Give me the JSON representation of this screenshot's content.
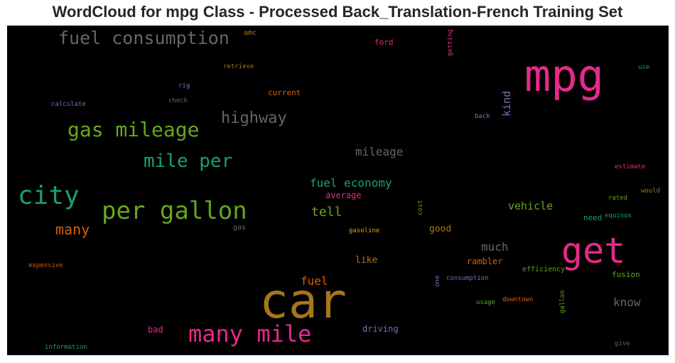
{
  "title": "WordCloud for mpg Class - Processed Back_Translation-French Training Set",
  "words": [
    {
      "text": "mpg",
      "color": "#e7298a",
      "vertical": false
    },
    {
      "text": "car",
      "color": "#a6761d",
      "vertical": false
    },
    {
      "text": "get",
      "color": "#e7298a",
      "vertical": false
    },
    {
      "text": "per gallon",
      "color": "#66a61e",
      "vertical": false
    },
    {
      "text": "city",
      "color": "#1b9e77",
      "vertical": false
    },
    {
      "text": "many mile",
      "color": "#e7298a",
      "vertical": false
    },
    {
      "text": "gas mileage",
      "color": "#66a61e",
      "vertical": false
    },
    {
      "text": "fuel consumption",
      "color": "#666666",
      "vertical": false
    },
    {
      "text": "mile per",
      "color": "#1b9e77",
      "vertical": false
    },
    {
      "text": "highway",
      "color": "#666666",
      "vertical": false
    },
    {
      "text": "many",
      "color": "#d95f02",
      "vertical": false
    },
    {
      "text": "fuel economy",
      "color": "#1b9e77",
      "vertical": false
    },
    {
      "text": "mileage",
      "color": "#666666",
      "vertical": false
    },
    {
      "text": "tell",
      "color": "#66a61e",
      "vertical": false
    },
    {
      "text": "kind",
      "color": "#7570b3",
      "vertical": true
    },
    {
      "text": "fuel",
      "color": "#d95f02",
      "vertical": false
    },
    {
      "text": "much",
      "color": "#666666",
      "vertical": false
    },
    {
      "text": "know",
      "color": "#666666",
      "vertical": false
    },
    {
      "text": "vehicle",
      "color": "#66a61e",
      "vertical": false
    },
    {
      "text": "average",
      "color": "#e7298a",
      "vertical": false
    },
    {
      "text": "like",
      "color": "#a6761d",
      "vertical": false
    },
    {
      "text": "good",
      "color": "#a6761d",
      "vertical": false
    },
    {
      "text": "rambler",
      "color": "#d95f02",
      "vertical": false
    },
    {
      "text": "driving",
      "color": "#7570b3",
      "vertical": false
    },
    {
      "text": "bad",
      "color": "#e7298a",
      "vertical": false
    },
    {
      "text": "current",
      "color": "#d95f02",
      "vertical": false
    },
    {
      "text": "fusion",
      "color": "#66a61e",
      "vertical": false
    },
    {
      "text": "need",
      "color": "#1b9e77",
      "vertical": false
    },
    {
      "text": "ford",
      "color": "#e7298a",
      "vertical": false
    },
    {
      "text": "efficiency",
      "color": "#66a61e",
      "vertical": false
    },
    {
      "text": "gas",
      "color": "#666666",
      "vertical": false
    },
    {
      "text": "gasoline",
      "color": "#e6ab02",
      "vertical": false
    },
    {
      "text": "consumption",
      "color": "#7570b3",
      "vertical": false
    },
    {
      "text": "downtown",
      "color": "#d95f02",
      "vertical": false
    },
    {
      "text": "usage",
      "color": "#66a61e",
      "vertical": false
    },
    {
      "text": "amc",
      "color": "#a6761d",
      "vertical": false
    },
    {
      "text": "retrieve",
      "color": "#a6761d",
      "vertical": false
    },
    {
      "text": "rig",
      "color": "#7570b3",
      "vertical": false
    },
    {
      "text": "check",
      "color": "#666666",
      "vertical": false
    },
    {
      "text": "calculate",
      "color": "#7570b3",
      "vertical": false
    },
    {
      "text": "back",
      "color": "#7570b3",
      "vertical": false
    },
    {
      "text": "use",
      "color": "#1b9e77",
      "vertical": false
    },
    {
      "text": "estimate",
      "color": "#e7298a",
      "vertical": false
    },
    {
      "text": "would",
      "color": "#a6761d",
      "vertical": false
    },
    {
      "text": "rated",
      "color": "#66a61e",
      "vertical": false
    },
    {
      "text": "equinox",
      "color": "#1b9e77",
      "vertical": false
    },
    {
      "text": "expensive",
      "color": "#d95f02",
      "vertical": false
    },
    {
      "text": "information",
      "color": "#1b9e77",
      "vertical": false
    },
    {
      "text": "give",
      "color": "#666666",
      "vertical": false
    },
    {
      "text": "getting",
      "color": "#e7298a",
      "vertical": true
    },
    {
      "text": "cost",
      "color": "#a6761d",
      "vertical": true
    },
    {
      "text": "one",
      "color": "#7570b3",
      "vertical": true
    },
    {
      "text": "gallon",
      "color": "#66a61e",
      "vertical": true
    }
  ]
}
